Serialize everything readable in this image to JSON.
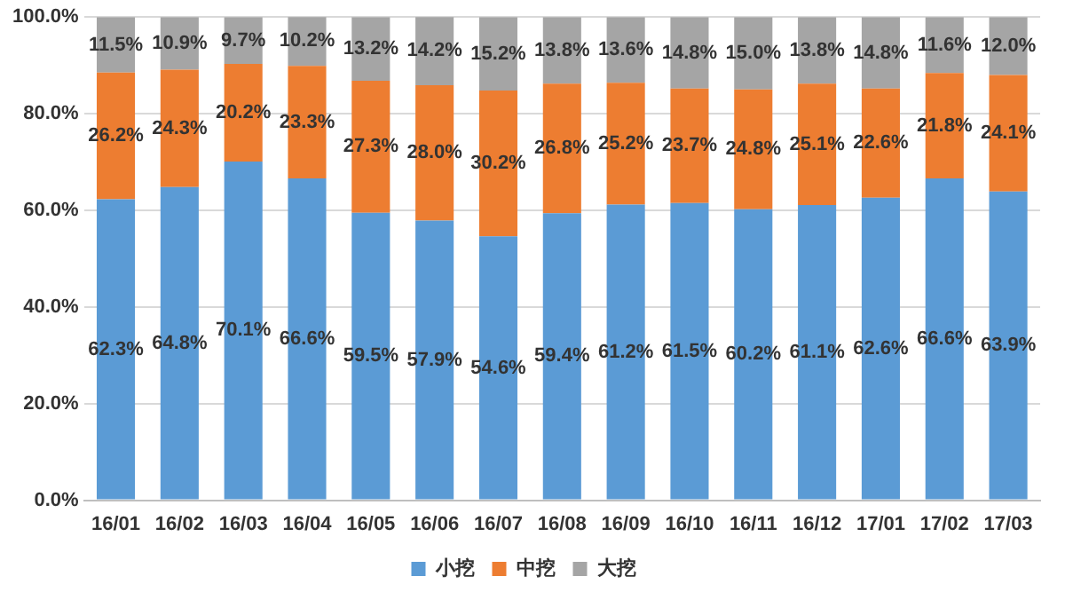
{
  "chart_data": {
    "type": "bar",
    "stacked": true,
    "categories": [
      "16/01",
      "16/02",
      "16/03",
      "16/04",
      "16/05",
      "16/06",
      "16/07",
      "16/08",
      "16/09",
      "16/10",
      "16/11",
      "16/12",
      "17/01",
      "17/02",
      "17/03"
    ],
    "series": [
      {
        "name": "小挖",
        "color": "#5b9bd5",
        "values": [
          62.3,
          64.8,
          70.1,
          66.6,
          59.5,
          57.9,
          54.6,
          59.4,
          61.2,
          61.5,
          60.2,
          61.1,
          62.6,
          66.6,
          63.9
        ],
        "value_labels": [
          "62.3%",
          "64.8%",
          "70.1%",
          "66.6%",
          "59.5%",
          "57.9%",
          "54.6%",
          "59.4%",
          "61.2%",
          "61.5%",
          "60.2%",
          "61.1%",
          "62.6%",
          "66.6%",
          "63.9%"
        ]
      },
      {
        "name": "中挖",
        "color": "#ed7d31",
        "values": [
          26.2,
          24.3,
          20.2,
          23.3,
          27.3,
          28.0,
          30.2,
          26.8,
          25.2,
          23.7,
          24.8,
          25.1,
          22.6,
          21.8,
          24.1
        ],
        "value_labels": [
          "26.2%",
          "24.3%",
          "20.2%",
          "23.3%",
          "27.3%",
          "28.0%",
          "30.2%",
          "26.8%",
          "25.2%",
          "23.7%",
          "24.8%",
          "25.1%",
          "22.6%",
          "21.8%",
          "24.1%"
        ]
      },
      {
        "name": "大挖",
        "color": "#a5a5a5",
        "values": [
          11.5,
          10.9,
          9.7,
          10.2,
          13.2,
          14.2,
          15.2,
          13.8,
          13.6,
          14.8,
          15.0,
          13.8,
          14.8,
          11.6,
          12.0
        ],
        "value_labels": [
          "11.5%",
          "10.9%",
          "9.7%",
          "10.2%",
          "13.2%",
          "14.2%",
          "15.2%",
          "13.8%",
          "13.6%",
          "14.8%",
          "15.0%",
          "13.8%",
          "14.8%",
          "11.6%",
          "12.0%"
        ]
      }
    ],
    "ylim": [
      0,
      100
    ],
    "yticks": [
      {
        "value": 0,
        "label": "0.0%"
      },
      {
        "value": 20,
        "label": "20.0%"
      },
      {
        "value": 40,
        "label": "40.0%"
      },
      {
        "value": 60,
        "label": "60.0%"
      },
      {
        "value": 80,
        "label": "80.0%"
      },
      {
        "value": 100,
        "label": "100.0%"
      }
    ],
    "grid": "y",
    "legend": "bottom"
  }
}
